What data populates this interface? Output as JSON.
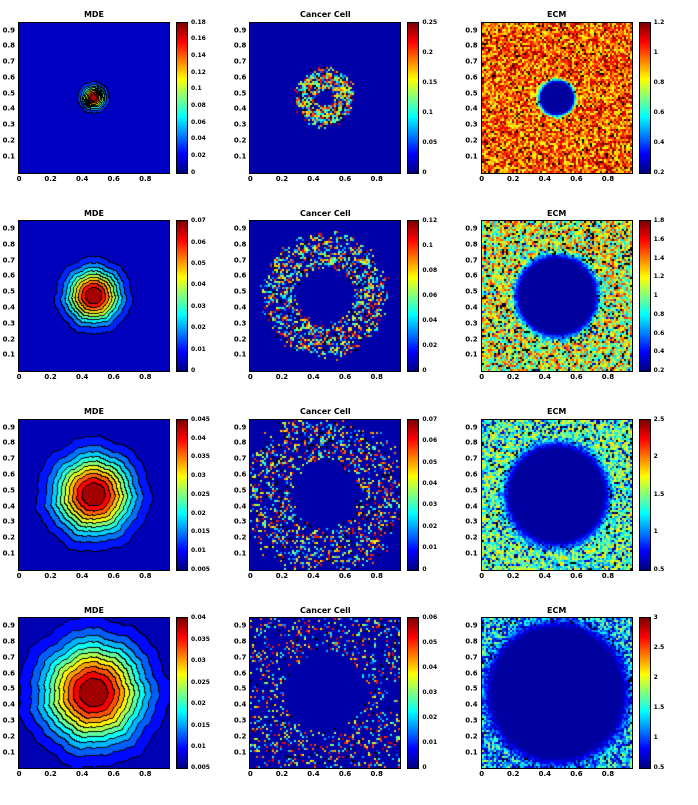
{
  "figure": {
    "description": "4x3 grid of simulation heatmaps",
    "column_titles": [
      "MDE",
      "Cancer Cell",
      "ECM"
    ],
    "background_color": "#ffffff",
    "axis_color": "#000000"
  },
  "chart_data": {
    "type": "heatmap",
    "layout": {
      "rows": 4,
      "cols": 3
    },
    "colormap": "jet",
    "grid": false,
    "x_range": [
      0,
      0.95
    ],
    "y_range": [
      0,
      0.95
    ],
    "x_ticks": [
      "0",
      "0.2",
      "0.4",
      "0.6",
      "0.8"
    ],
    "y_ticks": [
      "0.9",
      "0.8",
      "0.7",
      "0.6",
      "0.5",
      "0.4",
      "0.3",
      "0.2",
      "0.1"
    ],
    "plots": [
      {
        "row": 1,
        "col": 1,
        "title": "MDE",
        "pattern": "gaussian_contour",
        "center": [
          0.5,
          0.5
        ],
        "sigma": 0.05,
        "levels": 9,
        "seed": 101,
        "colorbar_ticks": [
          "0.18",
          "0.16",
          "0.14",
          "0.12",
          "0.1",
          "0.08",
          "0.06",
          "0.04",
          "0.02",
          "0"
        ]
      },
      {
        "row": 1,
        "col": 2,
        "title": "Cancer Cell",
        "pattern": "speckle_annulus",
        "center": [
          0.5,
          0.5
        ],
        "r_inner": 0.045,
        "r_outer": 0.165,
        "inner_width": 0.03,
        "outer_width": 0.05,
        "density": 0.85,
        "seed": 102,
        "colorbar_ticks": [
          "0.25",
          "0.2",
          "0.15",
          "0.1",
          "0.05",
          "0"
        ]
      },
      {
        "row": 1,
        "col": 3,
        "title": "ECM",
        "pattern": "noise_field_hole",
        "center": [
          0.5,
          0.5
        ],
        "hole_radius": 0.1,
        "edge_width": 0.05,
        "value_low": 0.58,
        "value_high": 1.0,
        "cover": 1.0,
        "black_speck": 0.04,
        "seed": 103,
        "colorbar_ticks": [
          "1.2",
          "1",
          "0.8",
          "0.6",
          "0.4",
          "0.2"
        ]
      },
      {
        "row": 2,
        "col": 1,
        "title": "MDE",
        "pattern": "gaussian_contour",
        "center": [
          0.5,
          0.5
        ],
        "sigma": 0.12,
        "levels": 10,
        "seed": 201,
        "colorbar_ticks": [
          "0.07",
          "0.06",
          "0.05",
          "0.04",
          "0.03",
          "0.02",
          "0.01",
          "0"
        ]
      },
      {
        "row": 2,
        "col": 2,
        "title": "Cancer Cell",
        "pattern": "speckle_annulus",
        "center": [
          0.5,
          0.5
        ],
        "r_inner": 0.17,
        "r_outer": 0.36,
        "inner_width": 0.05,
        "outer_width": 0.09,
        "density": 0.5,
        "seed": 202,
        "colorbar_ticks": [
          "0.12",
          "0.1",
          "0.08",
          "0.06",
          "0.04",
          "0.02",
          "0"
        ]
      },
      {
        "row": 2,
        "col": 3,
        "title": "ECM",
        "pattern": "noise_field_hole",
        "center": [
          0.5,
          0.5
        ],
        "hole_radius": 0.24,
        "edge_width": 0.09,
        "value_low": 0.32,
        "value_high": 0.85,
        "cover": 0.97,
        "black_speck": 0.1,
        "seed": 203,
        "colorbar_ticks": [
          "1.8",
          "1.6",
          "1.4",
          "1.2",
          "1",
          "0.8",
          "0.6",
          "0.4",
          "0.2"
        ]
      },
      {
        "row": 3,
        "col": 1,
        "title": "MDE",
        "pattern": "gaussian_contour",
        "center": [
          0.5,
          0.5
        ],
        "sigma": 0.175,
        "levels": 11,
        "seed": 301,
        "colorbar_ticks": [
          "0.045",
          "0.04",
          "0.035",
          "0.03",
          "0.025",
          "0.02",
          "0.015",
          "0.01",
          "0.005"
        ]
      },
      {
        "row": 3,
        "col": 2,
        "title": "Cancer Cell",
        "pattern": "speckle_annulus",
        "center": [
          0.5,
          0.5
        ],
        "r_inner": 0.2,
        "r_outer": 0.46,
        "inner_width": 0.05,
        "outer_width": 0.13,
        "density": 0.32,
        "seed": 302,
        "colorbar_ticks": [
          "0.07",
          "0.06",
          "0.05",
          "0.04",
          "0.03",
          "0.02",
          "0.01",
          "0"
        ]
      },
      {
        "row": 3,
        "col": 3,
        "title": "ECM",
        "pattern": "noise_field_hole",
        "center": [
          0.5,
          0.5
        ],
        "hole_radius": 0.3,
        "edge_width": 0.11,
        "value_low": 0.25,
        "value_high": 0.68,
        "cover": 0.9,
        "black_speck": 0.06,
        "seed": 303,
        "colorbar_ticks": [
          "2.5",
          "2",
          "1.5",
          "1",
          "0.5"
        ]
      },
      {
        "row": 4,
        "col": 1,
        "title": "MDE",
        "pattern": "gaussian_contour",
        "center": [
          0.5,
          0.5
        ],
        "sigma": 0.225,
        "levels": 12,
        "seed": 401,
        "colorbar_ticks": [
          "0.04",
          "0.035",
          "0.03",
          "0.025",
          "0.02",
          "0.015",
          "0.01",
          "0.005"
        ]
      },
      {
        "row": 4,
        "col": 2,
        "title": "Cancer Cell",
        "pattern": "speckle_annulus",
        "center": [
          0.5,
          0.5
        ],
        "r_inner": 0.24,
        "r_outer": 0.7,
        "inner_width": 0.06,
        "outer_width": 0.18,
        "density": 0.2,
        "seed": 402,
        "colorbar_ticks": [
          "0.06",
          "0.05",
          "0.04",
          "0.03",
          "0.02",
          "0.01",
          "0"
        ]
      },
      {
        "row": 4,
        "col": 3,
        "title": "ECM",
        "pattern": "noise_field_hole",
        "center": [
          0.5,
          0.5
        ],
        "hole_radius": 0.42,
        "edge_width": 0.13,
        "value_low": 0.18,
        "value_high": 0.58,
        "cover": 0.75,
        "black_speck": 0.04,
        "seed": 403,
        "colorbar_ticks": [
          "3",
          "2.5",
          "2",
          "1.5",
          "1",
          "0.5"
        ]
      }
    ]
  }
}
